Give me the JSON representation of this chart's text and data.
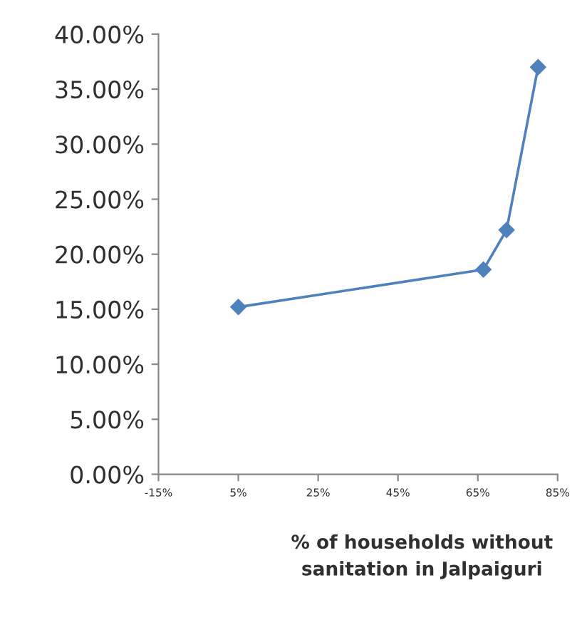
{
  "chart_data": {
    "type": "line",
    "xlabel": "% of households without\nsanitation in Jalpaiguri",
    "x": [
      5,
      66.4,
      72.2,
      80.1
    ],
    "series": [
      {
        "color": "#4f81bd",
        "values": [
          15.2,
          18.6,
          22.2,
          37.0
        ]
      }
    ],
    "marker": "diamond",
    "line_style": "solid",
    "grid": false,
    "legend": false,
    "xlim": [
      -15,
      85
    ],
    "xticks": [
      {
        "value": -15,
        "label": "-15%"
      },
      {
        "value": 5,
        "label": "5%"
      },
      {
        "value": 25,
        "label": "25%"
      },
      {
        "value": 45,
        "label": "45%"
      },
      {
        "value": 65,
        "label": "65%"
      },
      {
        "value": 85,
        "label": "85%"
      }
    ],
    "ylim": [
      0,
      40
    ],
    "yticks": [
      {
        "value": 0,
        "label": "0.00%"
      },
      {
        "value": 5,
        "label": "5.00%"
      },
      {
        "value": 10,
        "label": "10.00%"
      },
      {
        "value": 15,
        "label": "15.00%"
      },
      {
        "value": 20,
        "label": "20.00%"
      },
      {
        "value": 25,
        "label": "25.00%"
      },
      {
        "value": 30,
        "label": "30.00%"
      },
      {
        "value": 35,
        "label": "35.00%"
      },
      {
        "value": 40,
        "label": "40.00%"
      }
    ]
  }
}
